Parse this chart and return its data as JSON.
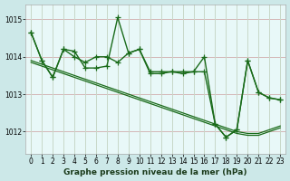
{
  "title": "Graphe pression niveau de la mer (hPa)",
  "bg_outer": "#cce8e8",
  "bg_inner": "#e8f8f8",
  "line_color": "#1a6b1a",
  "grid_color_h": "#d4b8b8",
  "grid_color_v": "#c8d8c8",
  "ylim": [
    1011.4,
    1015.4
  ],
  "yticks": [
    1012,
    1013,
    1014,
    1015
  ],
  "xticks": [
    0,
    1,
    2,
    3,
    4,
    5,
    6,
    7,
    8,
    9,
    10,
    11,
    12,
    13,
    14,
    15,
    16,
    17,
    18,
    19,
    20,
    21,
    22,
    23
  ],
  "series1": [
    1014.65,
    1013.9,
    1013.45,
    1014.2,
    1014.15,
    1013.7,
    1013.7,
    1013.75,
    1015.05,
    1014.1,
    1014.2,
    1013.55,
    1013.55,
    1013.6,
    1013.55,
    1013.6,
    1014.0,
    1012.2,
    1011.85,
    1012.05,
    1013.9,
    1013.05,
    1012.9,
    1012.85
  ],
  "series2": [
    1014.65,
    1013.9,
    1013.45,
    1014.2,
    1014.0,
    1013.85,
    1014.0,
    1014.0,
    1013.85,
    1014.1,
    1014.2,
    1013.6,
    1013.6,
    1013.6,
    1013.6,
    1013.6,
    1013.6,
    1012.2,
    1011.85,
    1012.05,
    1013.9,
    1013.05,
    1012.9,
    1012.85
  ],
  "trend1": [
    1013.85,
    1013.75,
    1013.65,
    1013.55,
    1013.45,
    1013.35,
    1013.25,
    1013.15,
    1013.05,
    1012.95,
    1012.85,
    1012.75,
    1012.65,
    1012.55,
    1012.45,
    1012.35,
    1012.25,
    1012.15,
    1012.05,
    1011.95,
    1011.9,
    1011.9,
    1012.0,
    1012.1
  ],
  "trend2": [
    1013.9,
    1013.8,
    1013.7,
    1013.6,
    1013.5,
    1013.4,
    1013.3,
    1013.2,
    1013.1,
    1013.0,
    1012.9,
    1012.8,
    1012.7,
    1012.6,
    1012.5,
    1012.4,
    1012.3,
    1012.2,
    1012.1,
    1012.0,
    1011.95,
    1011.95,
    1012.05,
    1012.15
  ],
  "marker": "+",
  "markersize": 4,
  "linewidth": 1.0,
  "tick_fontsize": 5.5,
  "xlabel_fontsize": 6.5
}
